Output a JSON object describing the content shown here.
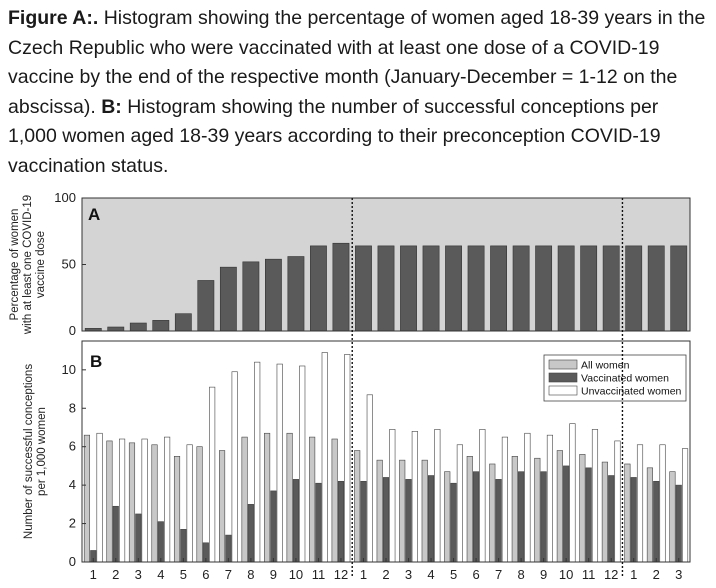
{
  "caption": {
    "label_a": "Figure A:.",
    "text_a": " Histogram showing the percentage of women aged 18-39 years in the Czech Republic who were vaccinated with at least one dose of a COVID-19 vaccine by the end of the respective month (January-December = 1-12 on the abscissa). ",
    "label_b": "B:",
    "text_b": " Histogram showing the number of successful conceptions per 1,000 women aged 18-39 years according to their preconception COVID-19 vaccination status."
  },
  "chart_data": [
    {
      "type": "bar",
      "panel_label": "A",
      "ylabel": "Percentage of women with at least one COVID-19 vaccine dose",
      "ylabel_lines": [
        "Percentage of women",
        "with at least one COVID-19",
        "vaccine dose"
      ],
      "ylim": [
        0,
        100
      ],
      "yticks": [
        0,
        50,
        100
      ],
      "categories": [
        "1",
        "2",
        "3",
        "4",
        "5",
        "6",
        "7",
        "8",
        "9",
        "10",
        "11",
        "12",
        "1",
        "2",
        "3",
        "4",
        "5",
        "6",
        "7",
        "8",
        "9",
        "10",
        "11",
        "12",
        "1",
        "2",
        "3"
      ],
      "values": [
        2,
        3,
        6,
        8,
        13,
        38,
        48,
        52,
        54,
        56,
        64,
        66,
        64,
        64,
        64,
        64,
        64,
        64,
        64,
        64,
        64,
        64,
        64,
        64,
        64,
        64,
        64
      ],
      "colors": {
        "bar": "#5a5a5a",
        "background": "#d4d4d4"
      },
      "year_dividers_after": [
        12,
        24
      ]
    },
    {
      "type": "bar",
      "panel_label": "B",
      "ylabel": "Number of successful conceptions per 1,000 women",
      "ylabel_lines": [
        "Number of successful conceptions",
        "per 1,000 women"
      ],
      "ylim": [
        0,
        11.5
      ],
      "yticks": [
        0,
        2,
        4,
        6,
        8,
        10
      ],
      "categories": [
        "1",
        "2",
        "3",
        "4",
        "5",
        "6",
        "7",
        "8",
        "9",
        "10",
        "11",
        "12",
        "1",
        "2",
        "3",
        "4",
        "5",
        "6",
        "7",
        "8",
        "9",
        "10",
        "11",
        "12",
        "1",
        "2",
        "3"
      ],
      "legend_position": "top-right",
      "series": [
        {
          "name": "All women",
          "color": "#c8c8c8",
          "values": [
            6.6,
            6.3,
            6.2,
            6.1,
            5.5,
            6.0,
            5.8,
            6.5,
            6.7,
            6.7,
            6.5,
            6.4,
            5.8,
            5.3,
            5.3,
            5.3,
            4.7,
            5.5,
            5.1,
            5.5,
            5.4,
            5.8,
            5.6,
            5.2,
            5.1,
            4.9,
            4.7
          ]
        },
        {
          "name": "Vaccinated women",
          "color": "#5a5a5a",
          "values": [
            0.6,
            2.9,
            2.5,
            2.1,
            1.7,
            1.0,
            1.4,
            3.0,
            3.7,
            4.3,
            4.1,
            4.2,
            4.2,
            4.4,
            4.3,
            4.5,
            4.1,
            4.7,
            4.3,
            4.7,
            4.7,
            5.0,
            4.9,
            4.5,
            4.4,
            4.2,
            4.0
          ]
        },
        {
          "name": "Unvaccinated women",
          "color": "#ffffff",
          "values": [
            6.7,
            6.4,
            6.4,
            6.5,
            6.1,
            9.1,
            9.9,
            10.4,
            10.3,
            10.2,
            10.9,
            10.8,
            8.7,
            6.9,
            6.8,
            6.9,
            6.1,
            6.9,
            6.5,
            6.7,
            6.6,
            7.2,
            6.9,
            6.3,
            6.1,
            6.1,
            5.9
          ]
        }
      ],
      "colors": {
        "background": "#ffffff"
      },
      "year_dividers_after": [
        12,
        24
      ]
    }
  ]
}
